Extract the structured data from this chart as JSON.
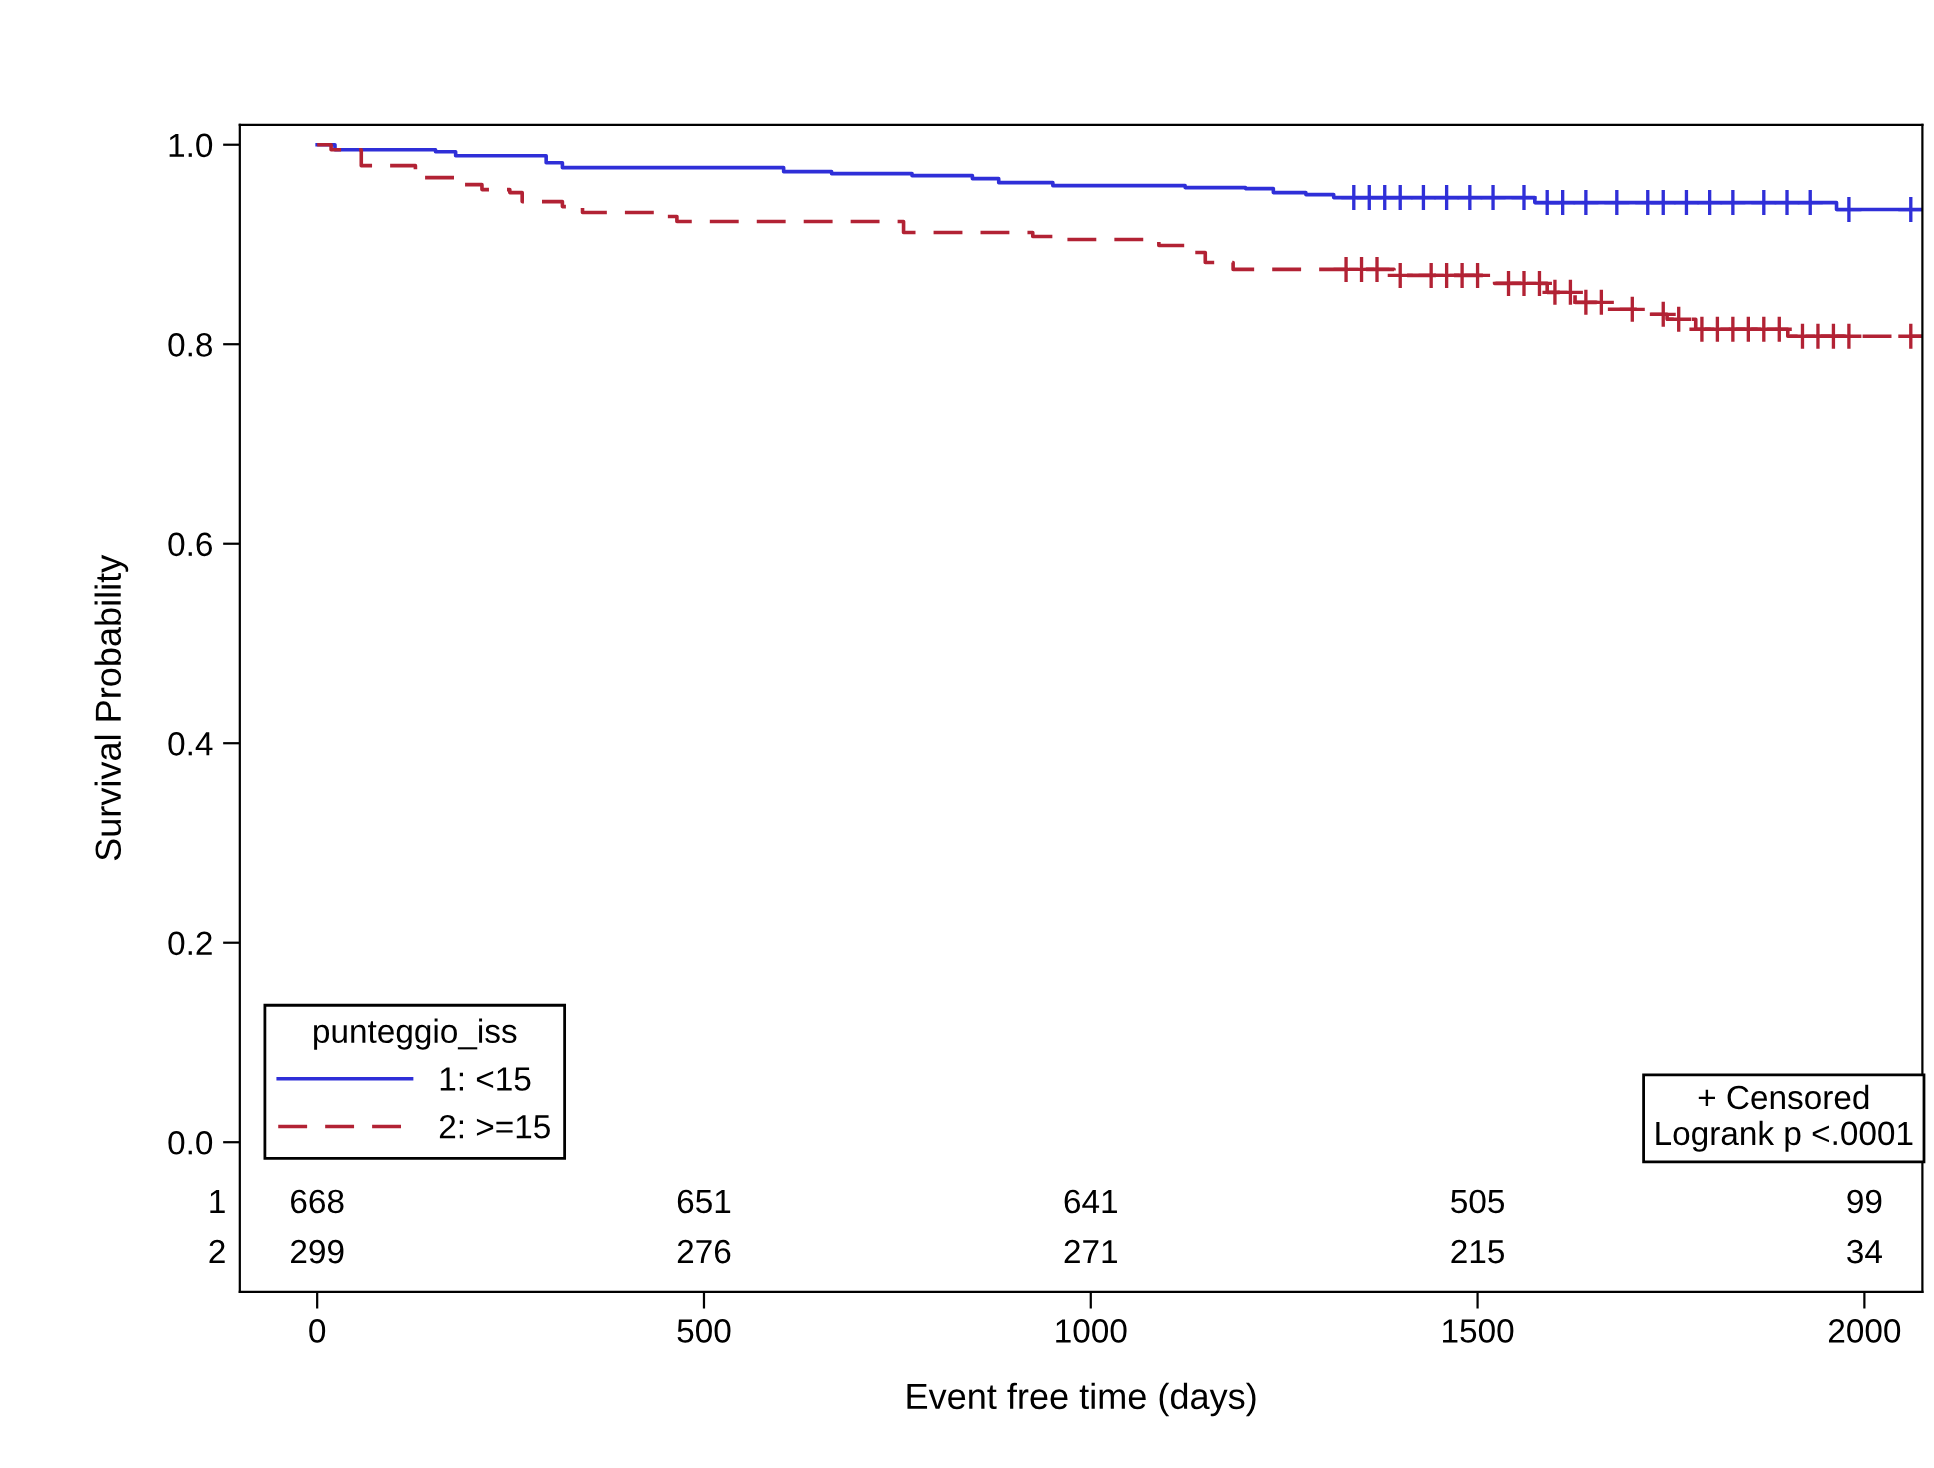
{
  "chart_data": {
    "type": "step",
    "xlabel": "Event free time (days)",
    "ylabel": "Survival Probability",
    "xlim": [
      -100,
      2075
    ],
    "ylim": [
      -0.15,
      1.02
    ],
    "xticks": [
      0,
      500,
      1000,
      1500,
      2000
    ],
    "yticks": [
      {
        "value": 0,
        "label": "0.0"
      },
      {
        "value": 0.2,
        "label": "0.2"
      },
      {
        "value": 0.4,
        "label": "0.4"
      },
      {
        "value": 0.6,
        "label": "0.6"
      },
      {
        "value": 0.8,
        "label": "0.8"
      },
      {
        "value": 1,
        "label": "1.0"
      }
    ],
    "grid": false,
    "legend": "bottom left",
    "legend_title": "punteggio_iss",
    "series": [
      {
        "name": "1: <15",
        "color": "#2f2fd8",
        "line_style": "solid",
        "x": [
          0,
          23,
          153,
          179,
          296,
          317,
          603,
          665,
          769,
          847,
          881,
          951,
          1122,
          1200,
          1236,
          1278,
          1314,
          1574,
          1964,
          2075
        ],
        "values": [
          1.0,
          0.995,
          0.993,
          0.989,
          0.982,
          0.977,
          0.973,
          0.971,
          0.969,
          0.966,
          0.962,
          0.959,
          0.957,
          0.956,
          0.952,
          0.95,
          0.947,
          0.942,
          0.935,
          0.935
        ]
      },
      {
        "name": "2: >=15",
        "color": "#b22234",
        "line_style": "dashed",
        "x": [
          0,
          18,
          57,
          127,
          179,
          213,
          249,
          265,
          317,
          343,
          447,
          465,
          758,
          925,
          951,
          1088,
          1122,
          1148,
          1184,
          1392,
          1522,
          1590,
          1626,
          1668,
          1719,
          1745,
          1782,
          1901,
          2075
        ],
        "values": [
          1.0,
          0.995,
          0.979,
          0.967,
          0.96,
          0.955,
          0.952,
          0.943,
          0.938,
          0.932,
          0.928,
          0.923,
          0.912,
          0.908,
          0.905,
          0.899,
          0.892,
          0.882,
          0.875,
          0.869,
          0.861,
          0.852,
          0.842,
          0.835,
          0.83,
          0.825,
          0.815,
          0.808,
          0.808
        ]
      },
      {
        "type": "scatter",
        "marker": "cross",
        "color": "#2f2fd8",
        "x": [
          1340,
          1360,
          1380,
          1400,
          1430,
          1460,
          1490,
          1520,
          1560,
          1590,
          1610,
          1640,
          1680,
          1720,
          1740,
          1770,
          1800,
          1830,
          1870,
          1900,
          1930,
          1980,
          2060
        ],
        "values": [
          0.947,
          0.947,
          0.947,
          0.947,
          0.947,
          0.947,
          0.947,
          0.947,
          0.947,
          0.942,
          0.942,
          0.942,
          0.942,
          0.942,
          0.942,
          0.942,
          0.942,
          0.942,
          0.942,
          0.942,
          0.942,
          0.935,
          0.935
        ]
      },
      {
        "type": "scatter",
        "marker": "cross",
        "color": "#b22234",
        "x": [
          1330,
          1350,
          1370,
          1400,
          1440,
          1460,
          1480,
          1500,
          1540,
          1560,
          1580,
          1600,
          1620,
          1640,
          1660,
          1700,
          1740,
          1760,
          1790,
          1810,
          1830,
          1850,
          1870,
          1890,
          1920,
          1940,
          1960,
          1980,
          2060
        ],
        "values": [
          0.875,
          0.875,
          0.875,
          0.869,
          0.869,
          0.869,
          0.869,
          0.869,
          0.861,
          0.861,
          0.861,
          0.852,
          0.852,
          0.842,
          0.842,
          0.835,
          0.83,
          0.825,
          0.815,
          0.815,
          0.815,
          0.815,
          0.815,
          0.815,
          0.808,
          0.808,
          0.808,
          0.808,
          0.808
        ]
      }
    ],
    "annotations": [
      "+ Censored\nLogrank p <.0001",
      "1",
      "668",
      "651",
      "641",
      "505",
      "99",
      "2",
      "299",
      "276",
      "271",
      "215",
      "34"
    ]
  }
}
